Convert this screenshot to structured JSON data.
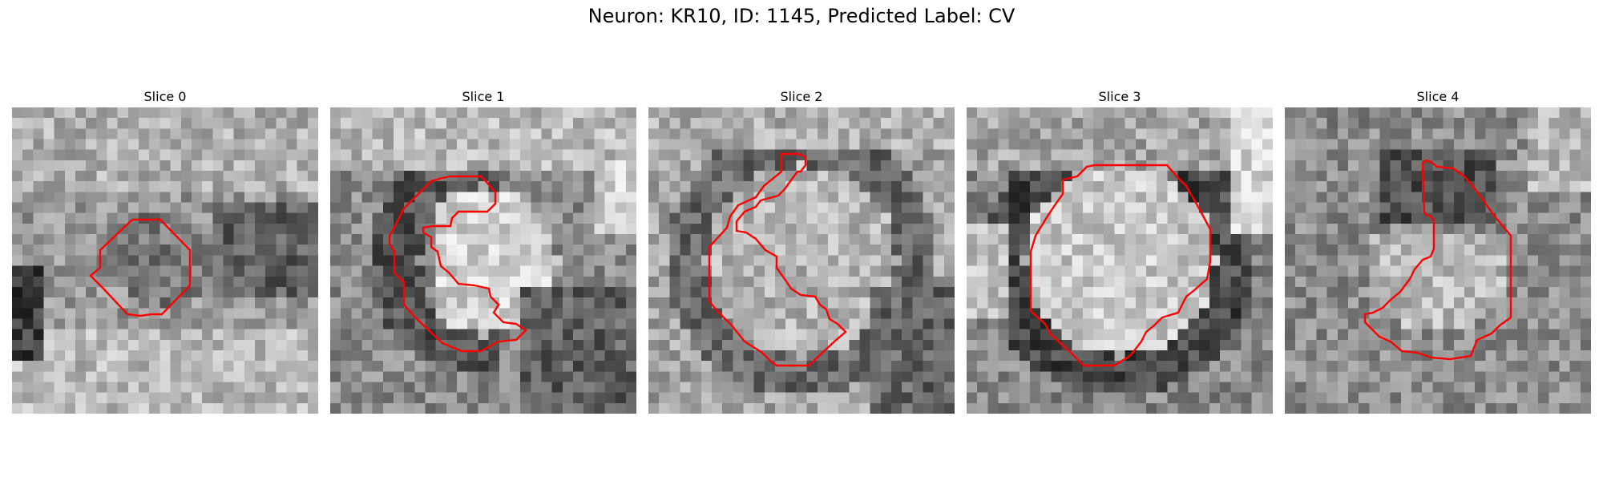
{
  "figure": {
    "title": "Neuron: KR10, ID: 1145, Predicted Label: CV",
    "contour_color": "#ff0000"
  },
  "slices": [
    {
      "title": "Slice 0",
      "seed": 11,
      "variant": 0
    },
    {
      "title": "Slice 1",
      "seed": 23,
      "variant": 1
    },
    {
      "title": "Slice 2",
      "seed": 37,
      "variant": 2
    },
    {
      "title": "Slice 3",
      "seed": 51,
      "variant": 3
    },
    {
      "title": "Slice 4",
      "seed": 67,
      "variant": 4
    }
  ]
}
